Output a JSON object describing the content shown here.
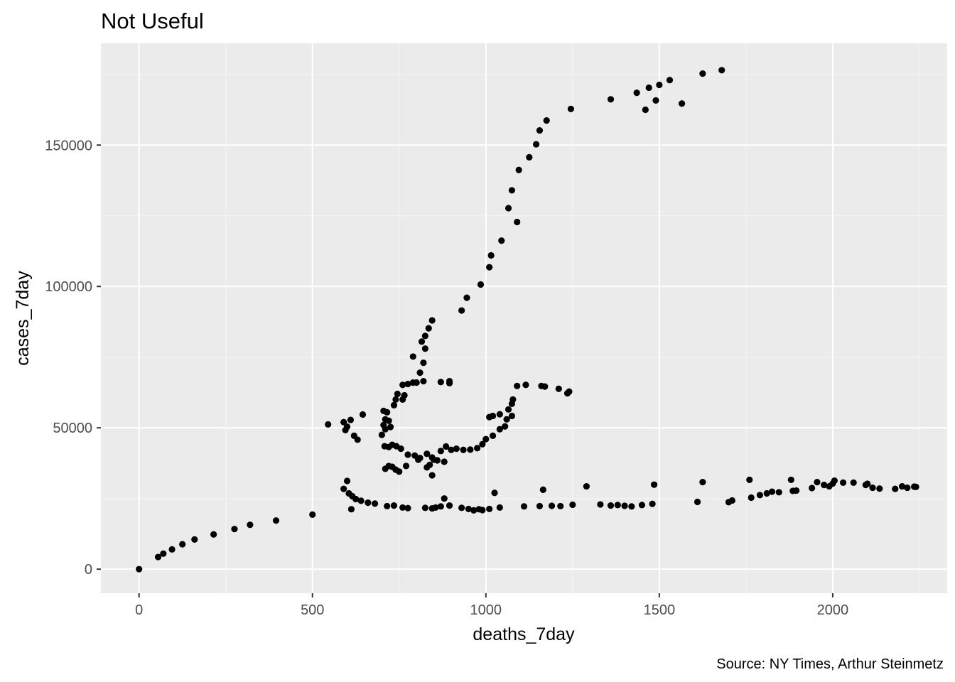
{
  "colors": {
    "panel_background": "#ebebeb",
    "grid_major": "#ffffff",
    "grid_minor": "#f5f5f5",
    "point": "#000000",
    "tick_text": "#4d4d4d",
    "tick_mark": "#333333"
  },
  "chart_data": {
    "type": "scatter",
    "title": "Not Useful",
    "xlabel": "deaths_7day",
    "ylabel": "cases_7day",
    "caption": "Source: NY Times, Arthur Steinmetz",
    "xlim": [
      -110,
      2330
    ],
    "ylim": [
      -8500,
      186000
    ],
    "x_ticks": [
      0,
      500,
      1000,
      1500,
      2000
    ],
    "x_tick_labels": [
      "0",
      "500",
      "1000",
      "1500",
      "2000"
    ],
    "y_ticks": [
      0,
      50000,
      100000,
      150000
    ],
    "y_tick_labels": [
      "0",
      "50000",
      "100000",
      "150000"
    ],
    "x_minor_ticks": [
      250,
      750,
      1250,
      1750,
      2250
    ],
    "y_minor_ticks": [
      25000,
      75000,
      125000,
      175000
    ],
    "grid": true,
    "legend": "none",
    "points": [
      [
        0,
        0
      ],
      [
        55,
        4300
      ],
      [
        70,
        5500
      ],
      [
        95,
        7000
      ],
      [
        125,
        8800
      ],
      [
        160,
        10500
      ],
      [
        215,
        12300
      ],
      [
        275,
        14200
      ],
      [
        320,
        15700
      ],
      [
        395,
        17200
      ],
      [
        500,
        19300
      ],
      [
        545,
        51200
      ],
      [
        590,
        52000
      ],
      [
        595,
        49200
      ],
      [
        600,
        50400
      ],
      [
        610,
        52800
      ],
      [
        620,
        47200
      ],
      [
        630,
        45800
      ],
      [
        645,
        54700
      ],
      [
        590,
        28400
      ],
      [
        600,
        31200
      ],
      [
        605,
        26800
      ],
      [
        615,
        25800
      ],
      [
        612,
        21200
      ],
      [
        625,
        24800
      ],
      [
        640,
        24200
      ],
      [
        660,
        23500
      ],
      [
        680,
        23200
      ],
      [
        715,
        22300
      ],
      [
        735,
        22500
      ],
      [
        760,
        21800
      ],
      [
        775,
        21600
      ],
      [
        825,
        21700
      ],
      [
        845,
        21500
      ],
      [
        855,
        21800
      ],
      [
        870,
        22200
      ],
      [
        880,
        25000
      ],
      [
        895,
        22500
      ],
      [
        930,
        21700
      ],
      [
        950,
        21300
      ],
      [
        965,
        20800
      ],
      [
        980,
        21200
      ],
      [
        990,
        20900
      ],
      [
        1010,
        21300
      ],
      [
        1025,
        27000
      ],
      [
        1040,
        21800
      ],
      [
        1110,
        22200
      ],
      [
        1155,
        22300
      ],
      [
        1165,
        28100
      ],
      [
        1190,
        22400
      ],
      [
        1215,
        22300
      ],
      [
        1250,
        22800
      ],
      [
        1290,
        29300
      ],
      [
        1330,
        22900
      ],
      [
        1360,
        22500
      ],
      [
        1380,
        22700
      ],
      [
        1400,
        22400
      ],
      [
        1420,
        22200
      ],
      [
        1450,
        22700
      ],
      [
        1480,
        23100
      ],
      [
        1485,
        29900
      ],
      [
        1610,
        23800
      ],
      [
        1625,
        30800
      ],
      [
        1700,
        23700
      ],
      [
        1710,
        24300
      ],
      [
        1760,
        31600
      ],
      [
        1765,
        25300
      ],
      [
        1790,
        26200
      ],
      [
        1810,
        26800
      ],
      [
        1825,
        27400
      ],
      [
        1845,
        27200
      ],
      [
        1880,
        31600
      ],
      [
        1885,
        27700
      ],
      [
        1895,
        27800
      ],
      [
        1940,
        28700
      ],
      [
        1955,
        30800
      ],
      [
        1975,
        29800
      ],
      [
        1990,
        29300
      ],
      [
        2000,
        30300
      ],
      [
        2005,
        31300
      ],
      [
        2030,
        30600
      ],
      [
        2060,
        30600
      ],
      [
        2095,
        29800
      ],
      [
        2100,
        30200
      ],
      [
        2115,
        28800
      ],
      [
        2135,
        28500
      ],
      [
        2180,
        28400
      ],
      [
        2200,
        29300
      ],
      [
        2215,
        28800
      ],
      [
        2235,
        29200
      ],
      [
        2240,
        29100
      ],
      [
        705,
        56000
      ],
      [
        710,
        53000
      ],
      [
        715,
        55500
      ],
      [
        705,
        51000
      ],
      [
        720,
        52500
      ],
      [
        710,
        49500
      ],
      [
        725,
        50300
      ],
      [
        735,
        58000
      ],
      [
        740,
        60000
      ],
      [
        745,
        62000
      ],
      [
        760,
        65200
      ],
      [
        775,
        65500
      ],
      [
        790,
        66000
      ],
      [
        800,
        66000
      ],
      [
        810,
        69500
      ],
      [
        820,
        73000
      ],
      [
        825,
        78000
      ],
      [
        815,
        80500
      ],
      [
        825,
        82500
      ],
      [
        835,
        85200
      ],
      [
        845,
        88000
      ],
      [
        790,
        75200
      ],
      [
        765,
        61500
      ],
      [
        760,
        60000
      ],
      [
        700,
        47500
      ],
      [
        708,
        43500
      ],
      [
        720,
        43200
      ],
      [
        730,
        44000
      ],
      [
        742,
        43500
      ],
      [
        755,
        42600
      ],
      [
        775,
        40500
      ],
      [
        795,
        40200
      ],
      [
        810,
        39300
      ],
      [
        830,
        40800
      ],
      [
        838,
        36900
      ],
      [
        845,
        33200
      ],
      [
        850,
        38700
      ],
      [
        860,
        38500
      ],
      [
        870,
        41800
      ],
      [
        880,
        38000
      ],
      [
        885,
        43400
      ],
      [
        900,
        42200
      ],
      [
        915,
        42600
      ],
      [
        935,
        42200
      ],
      [
        955,
        42300
      ],
      [
        975,
        42800
      ],
      [
        990,
        44200
      ],
      [
        1000,
        46000
      ],
      [
        1020,
        47200
      ],
      [
        1040,
        49500
      ],
      [
        1055,
        50500
      ],
      [
        1060,
        53000
      ],
      [
        1065,
        56500
      ],
      [
        1075,
        58500
      ],
      [
        1078,
        60000
      ],
      [
        1090,
        64800
      ],
      [
        1115,
        65200
      ],
      [
        1160,
        64800
      ],
      [
        1170,
        64600
      ],
      [
        1210,
        63800
      ],
      [
        1235,
        62200
      ],
      [
        1240,
        62800
      ],
      [
        1010,
        53800
      ],
      [
        1020,
        54200
      ],
      [
        1040,
        54800
      ],
      [
        1075,
        54200
      ],
      [
        710,
        35500
      ],
      [
        720,
        36500
      ],
      [
        730,
        36200
      ],
      [
        740,
        35200
      ],
      [
        750,
        34500
      ],
      [
        770,
        36500
      ],
      [
        805,
        38700
      ],
      [
        830,
        36000
      ],
      [
        845,
        39500
      ],
      [
        820,
        66500
      ],
      [
        870,
        66200
      ],
      [
        895,
        66500
      ],
      [
        895,
        65800
      ],
      [
        930,
        91500
      ],
      [
        945,
        96000
      ],
      [
        985,
        100700
      ],
      [
        1010,
        106800
      ],
      [
        1015,
        111000
      ],
      [
        1045,
        116200
      ],
      [
        1065,
        127700
      ],
      [
        1075,
        134000
      ],
      [
        1095,
        141200
      ],
      [
        1090,
        122800
      ],
      [
        1125,
        145700
      ],
      [
        1145,
        150300
      ],
      [
        1155,
        155200
      ],
      [
        1175,
        158700
      ],
      [
        1245,
        162800
      ],
      [
        1360,
        166200
      ],
      [
        1435,
        168500
      ],
      [
        1460,
        162500
      ],
      [
        1470,
        170300
      ],
      [
        1490,
        165800
      ],
      [
        1500,
        171300
      ],
      [
        1530,
        173000
      ],
      [
        1565,
        164700
      ],
      [
        1625,
        175300
      ],
      [
        1680,
        176500
      ]
    ]
  }
}
